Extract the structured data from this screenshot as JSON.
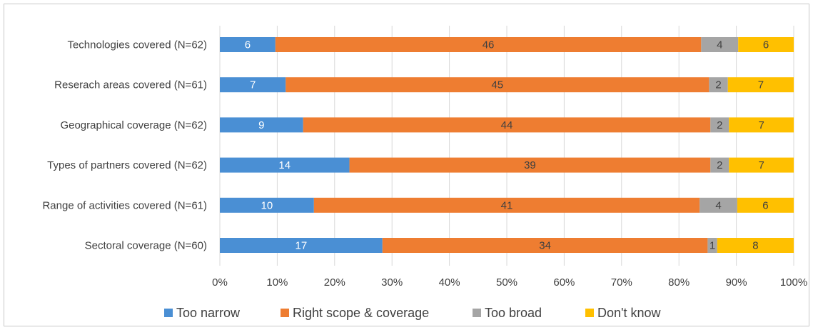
{
  "chart_data": {
    "type": "bar",
    "orientation": "horizontal",
    "stacking": "percent",
    "categories": [
      "Technologies covered (N=62)",
      "Reserach areas covered (N=61)",
      "Geographical coverage (N=62)",
      "Types of partners covered (N=62)",
      "Range of activities covered (N=61)",
      "Sectoral coverage (N=60)"
    ],
    "series": [
      {
        "name": "Too narrow",
        "color": "#4a8fd4",
        "label_color": "#ffffff",
        "values": [
          6,
          7,
          9,
          14,
          10,
          17
        ]
      },
      {
        "name": "Right scope & coverage",
        "color": "#ee7d31",
        "label_color": "#404040",
        "values": [
          46,
          45,
          44,
          39,
          41,
          34
        ]
      },
      {
        "name": "Too broad",
        "color": "#a5a5a5",
        "label_color": "#404040",
        "values": [
          4,
          2,
          2,
          2,
          4,
          1
        ]
      },
      {
        "name": "Don't know",
        "color": "#ffc000",
        "label_color": "#404040",
        "values": [
          6,
          7,
          7,
          7,
          6,
          8
        ]
      }
    ],
    "x_ticks": [
      "0%",
      "10%",
      "20%",
      "30%",
      "40%",
      "50%",
      "60%",
      "70%",
      "80%",
      "90%",
      "100%"
    ],
    "xlim": [
      0,
      100
    ],
    "grid": true,
    "legend_position": "bottom"
  }
}
